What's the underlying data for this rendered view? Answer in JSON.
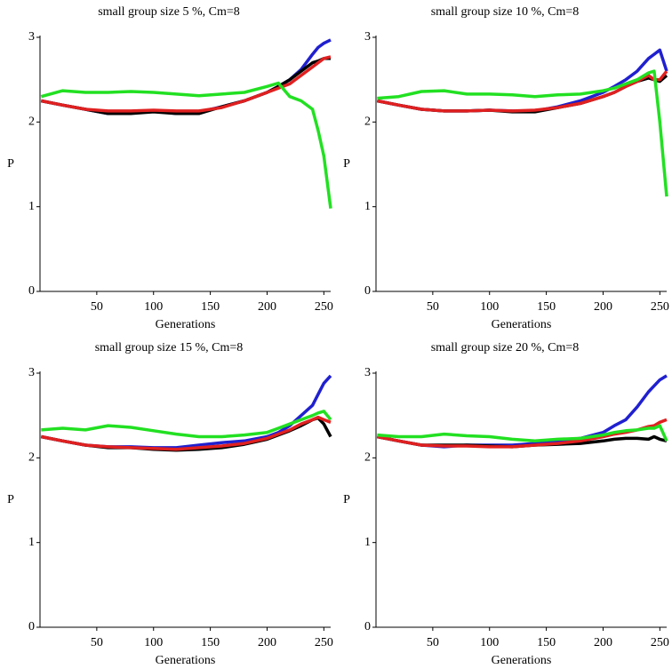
{
  "chart_data": [
    {
      "type": "line",
      "title": "small group size 5 %, Cm=8",
      "xlabel": "Generations",
      "ylabel": "P",
      "x": [
        1,
        20,
        40,
        60,
        80,
        100,
        120,
        140,
        160,
        180,
        200,
        210,
        220,
        230,
        240,
        245,
        250,
        256
      ],
      "xlim": [
        0,
        256
      ],
      "ylim": [
        0,
        3
      ],
      "xticks": [
        50,
        100,
        150,
        200,
        250
      ],
      "yticks": [
        0,
        1,
        2,
        3
      ],
      "series": [
        {
          "color": "#2020d0",
          "values": [
            2.25,
            2.2,
            2.15,
            2.1,
            2.12,
            2.13,
            2.1,
            2.12,
            2.18,
            2.25,
            2.35,
            2.42,
            2.5,
            2.62,
            2.8,
            2.88,
            2.93,
            2.97
          ]
        },
        {
          "color": "#000000",
          "values": [
            2.25,
            2.2,
            2.15,
            2.1,
            2.1,
            2.12,
            2.1,
            2.1,
            2.18,
            2.25,
            2.35,
            2.42,
            2.5,
            2.6,
            2.7,
            2.72,
            2.75,
            2.75
          ]
        },
        {
          "color": "#e02020",
          "values": [
            2.25,
            2.2,
            2.15,
            2.13,
            2.13,
            2.14,
            2.13,
            2.13,
            2.17,
            2.25,
            2.35,
            2.4,
            2.45,
            2.55,
            2.65,
            2.7,
            2.75,
            2.77
          ]
        },
        {
          "color": "#22e022",
          "values": [
            2.3,
            2.37,
            2.35,
            2.35,
            2.36,
            2.35,
            2.33,
            2.31,
            2.33,
            2.35,
            2.42,
            2.46,
            2.3,
            2.25,
            2.15,
            1.9,
            1.6,
            0.98
          ]
        }
      ]
    },
    {
      "type": "line",
      "title": "small group size 10 %, Cm=8",
      "xlabel": "Generations",
      "ylabel": "P",
      "x": [
        1,
        20,
        40,
        60,
        80,
        100,
        120,
        140,
        160,
        180,
        200,
        210,
        220,
        230,
        240,
        245,
        250,
        256
      ],
      "xlim": [
        0,
        256
      ],
      "ylim": [
        0,
        3
      ],
      "xticks": [
        50,
        100,
        150,
        200,
        250
      ],
      "yticks": [
        0,
        1,
        2,
        3
      ],
      "series": [
        {
          "color": "#2020d0",
          "values": [
            2.25,
            2.2,
            2.15,
            2.13,
            2.13,
            2.14,
            2.13,
            2.13,
            2.18,
            2.25,
            2.35,
            2.42,
            2.5,
            2.6,
            2.75,
            2.8,
            2.85,
            2.6
          ]
        },
        {
          "color": "#000000",
          "values": [
            2.25,
            2.2,
            2.15,
            2.13,
            2.13,
            2.14,
            2.12,
            2.12,
            2.17,
            2.22,
            2.3,
            2.35,
            2.42,
            2.48,
            2.52,
            2.5,
            2.48,
            2.55
          ]
        },
        {
          "color": "#e02020",
          "values": [
            2.25,
            2.2,
            2.15,
            2.13,
            2.13,
            2.14,
            2.13,
            2.14,
            2.17,
            2.22,
            2.3,
            2.35,
            2.42,
            2.48,
            2.55,
            2.5,
            2.5,
            2.6
          ]
        },
        {
          "color": "#22e022",
          "values": [
            2.28,
            2.3,
            2.36,
            2.37,
            2.33,
            2.33,
            2.32,
            2.3,
            2.32,
            2.33,
            2.37,
            2.4,
            2.45,
            2.5,
            2.58,
            2.6,
            2.0,
            1.12
          ]
        }
      ]
    },
    {
      "type": "line",
      "title": "small group size 15 %, Cm=8",
      "xlabel": "Generations",
      "ylabel": "P",
      "x": [
        1,
        20,
        40,
        60,
        80,
        100,
        120,
        140,
        160,
        180,
        200,
        210,
        220,
        230,
        240,
        245,
        250,
        256
      ],
      "xlim": [
        0,
        256
      ],
      "ylim": [
        0,
        3
      ],
      "xticks": [
        50,
        100,
        150,
        200,
        250
      ],
      "yticks": [
        0,
        1,
        2,
        3
      ],
      "series": [
        {
          "color": "#2020d0",
          "values": [
            2.25,
            2.2,
            2.15,
            2.13,
            2.13,
            2.12,
            2.12,
            2.15,
            2.18,
            2.2,
            2.25,
            2.3,
            2.38,
            2.5,
            2.62,
            2.75,
            2.88,
            2.97
          ]
        },
        {
          "color": "#000000",
          "values": [
            2.25,
            2.2,
            2.15,
            2.12,
            2.12,
            2.1,
            2.09,
            2.1,
            2.12,
            2.16,
            2.22,
            2.27,
            2.32,
            2.38,
            2.45,
            2.47,
            2.4,
            2.25
          ]
        },
        {
          "color": "#e02020",
          "values": [
            2.25,
            2.2,
            2.15,
            2.13,
            2.12,
            2.11,
            2.1,
            2.12,
            2.14,
            2.17,
            2.23,
            2.28,
            2.33,
            2.4,
            2.45,
            2.48,
            2.45,
            2.42
          ]
        },
        {
          "color": "#22e022",
          "values": [
            2.33,
            2.35,
            2.33,
            2.38,
            2.36,
            2.32,
            2.28,
            2.25,
            2.25,
            2.27,
            2.3,
            2.35,
            2.4,
            2.45,
            2.5,
            2.53,
            2.55,
            2.45
          ]
        }
      ]
    },
    {
      "type": "line",
      "title": "small group size 20 %, Cm=8",
      "xlabel": "Generations",
      "ylabel": "P",
      "x": [
        1,
        20,
        40,
        60,
        80,
        100,
        120,
        140,
        160,
        180,
        200,
        210,
        220,
        230,
        240,
        245,
        250,
        256
      ],
      "xlim": [
        0,
        256
      ],
      "ylim": [
        0,
        3
      ],
      "xticks": [
        50,
        100,
        150,
        200,
        250
      ],
      "yticks": [
        0,
        1,
        2,
        3
      ],
      "series": [
        {
          "color": "#2020d0",
          "values": [
            2.25,
            2.2,
            2.15,
            2.13,
            2.15,
            2.15,
            2.15,
            2.17,
            2.2,
            2.23,
            2.3,
            2.38,
            2.45,
            2.6,
            2.78,
            2.85,
            2.92,
            2.97
          ]
        },
        {
          "color": "#000000",
          "values": [
            2.25,
            2.2,
            2.15,
            2.15,
            2.15,
            2.14,
            2.13,
            2.15,
            2.16,
            2.17,
            2.2,
            2.22,
            2.23,
            2.23,
            2.22,
            2.25,
            2.22,
            2.2
          ]
        },
        {
          "color": "#e02020",
          "values": [
            2.25,
            2.2,
            2.15,
            2.14,
            2.14,
            2.13,
            2.13,
            2.15,
            2.17,
            2.2,
            2.25,
            2.28,
            2.3,
            2.33,
            2.37,
            2.38,
            2.42,
            2.45
          ]
        },
        {
          "color": "#22e022",
          "values": [
            2.27,
            2.25,
            2.25,
            2.28,
            2.26,
            2.25,
            2.22,
            2.2,
            2.22,
            2.23,
            2.27,
            2.3,
            2.32,
            2.33,
            2.35,
            2.35,
            2.38,
            2.2
          ]
        }
      ]
    }
  ]
}
